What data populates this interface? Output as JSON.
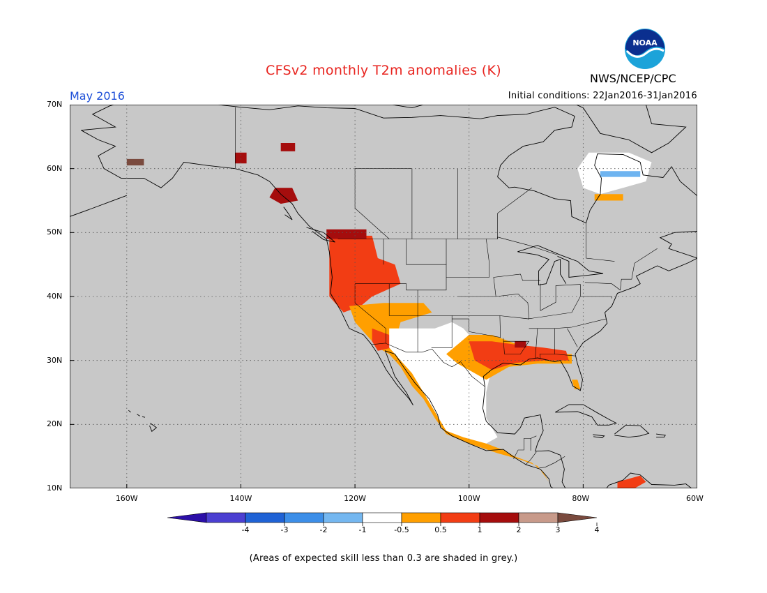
{
  "header": {
    "title": "CFSv2 monthly T2m anomalies (K)",
    "target_month": "May 2016",
    "initial_conditions": "Initial conditions: 22Jan2016-31Jan2016",
    "organization": "NWS/NCEP/CPC",
    "logo_text": "NOAA"
  },
  "map": {
    "lon_range": [
      -170,
      -60
    ],
    "lat_range": [
      10,
      70
    ],
    "land_color": "#c8c8c8",
    "ocean_color": "#c8c8c8",
    "lat_labels": [
      {
        "value": 70,
        "label": "70N"
      },
      {
        "value": 60,
        "label": "60N"
      },
      {
        "value": 50,
        "label": "50N"
      },
      {
        "value": 40,
        "label": "40N"
      },
      {
        "value": 30,
        "label": "30N"
      },
      {
        "value": 20,
        "label": "20N"
      },
      {
        "value": 10,
        "label": "10N"
      }
    ],
    "lon_labels": [
      {
        "value": -160,
        "label": "160W"
      },
      {
        "value": -140,
        "label": "140W"
      },
      {
        "value": -120,
        "label": "120W"
      },
      {
        "value": -100,
        "label": "100W"
      },
      {
        "value": -80,
        "label": "80W"
      },
      {
        "value": -60,
        "label": "60W"
      }
    ],
    "anomaly_regions": [
      {
        "name": "pacific-northwest",
        "color": "#f23d14",
        "points": [
          [
            -124.5,
            49.5
          ],
          [
            -117,
            49.5
          ],
          [
            -116,
            46
          ],
          [
            -113,
            45
          ],
          [
            -112,
            42
          ],
          [
            -117,
            40
          ],
          [
            -119,
            38.5
          ],
          [
            -122,
            37.5
          ],
          [
            -124.5,
            40
          ]
        ]
      },
      {
        "name": "bc-coast-dark",
        "color": "#a50d0d",
        "points": [
          [
            -125,
            50.5
          ],
          [
            -118,
            50.5
          ],
          [
            -118,
            49
          ],
          [
            -125,
            49
          ]
        ]
      },
      {
        "name": "southwest-orange",
        "color": "#ff9f00",
        "points": [
          [
            -121,
            38.5
          ],
          [
            -115,
            39
          ],
          [
            -112,
            39
          ],
          [
            -108,
            39
          ],
          [
            -106.5,
            37.5
          ],
          [
            -112,
            36
          ],
          [
            -113,
            33
          ],
          [
            -111,
            30
          ],
          [
            -108,
            27
          ],
          [
            -106,
            24
          ],
          [
            -104,
            21
          ],
          [
            -101,
            19
          ],
          [
            -97,
            17
          ],
          [
            -94,
            16
          ],
          [
            -92,
            15
          ],
          [
            -89,
            14
          ],
          [
            -87,
            12.5
          ],
          [
            -86,
            11
          ],
          [
            -88,
            13.5
          ],
          [
            -91,
            14.5
          ],
          [
            -95,
            15.5
          ],
          [
            -100,
            17
          ],
          [
            -104,
            18.5
          ],
          [
            -106,
            21
          ],
          [
            -108,
            24
          ],
          [
            -110,
            26
          ],
          [
            -112,
            29
          ],
          [
            -114,
            31
          ],
          [
            -116,
            32
          ],
          [
            -118,
            34
          ],
          [
            -120,
            36
          ]
        ]
      },
      {
        "name": "southwest-red",
        "color": "#f23d14",
        "points": [
          [
            -117,
            35
          ],
          [
            -114,
            34
          ],
          [
            -113.5,
            32
          ],
          [
            -116,
            31.5
          ],
          [
            -117,
            33
          ]
        ]
      },
      {
        "name": "mexico-white",
        "color": "#ffffff",
        "points": [
          [
            -114,
            35
          ],
          [
            -106,
            35
          ],
          [
            -103,
            36
          ],
          [
            -101,
            35
          ],
          [
            -98,
            32
          ],
          [
            -96,
            29
          ],
          [
            -97,
            25
          ],
          [
            -97,
            21
          ],
          [
            -95,
            18
          ],
          [
            -97,
            17
          ],
          [
            -101,
            18
          ],
          [
            -104,
            19
          ],
          [
            -106,
            22
          ],
          [
            -108,
            25
          ],
          [
            -110,
            28
          ],
          [
            -112,
            30
          ],
          [
            -114,
            32
          ]
        ]
      },
      {
        "name": "gulf-coast-orange",
        "color": "#ff9f00",
        "points": [
          [
            -104,
            31
          ],
          [
            -100,
            34
          ],
          [
            -96,
            34
          ],
          [
            -90,
            32
          ],
          [
            -86,
            31
          ],
          [
            -82,
            31
          ],
          [
            -82,
            29.5
          ],
          [
            -88,
            29.5
          ],
          [
            -93,
            29
          ],
          [
            -97,
            27
          ],
          [
            -99,
            28
          ],
          [
            -102,
            29.5
          ]
        ]
      },
      {
        "name": "gulf-coast-red",
        "color": "#f23d14",
        "points": [
          [
            -100,
            33
          ],
          [
            -96,
            33
          ],
          [
            -92,
            32.5
          ],
          [
            -87,
            32
          ],
          [
            -83,
            31.5
          ],
          [
            -82.5,
            30
          ],
          [
            -87,
            30
          ],
          [
            -92,
            29.6
          ],
          [
            -96,
            28.5
          ],
          [
            -99,
            30
          ]
        ]
      },
      {
        "name": "gulf-coast-dark",
        "color": "#a50d0d",
        "points": [
          [
            -92,
            33
          ],
          [
            -90,
            33
          ],
          [
            -90,
            32
          ],
          [
            -92,
            32
          ]
        ]
      },
      {
        "name": "florida-orange",
        "color": "#ff9f00",
        "points": [
          [
            -82,
            27
          ],
          [
            -81,
            27
          ],
          [
            -80.5,
            25.5
          ],
          [
            -81.5,
            25.5
          ]
        ]
      },
      {
        "name": "alaska-panhandle-dark",
        "color": "#a50d0d",
        "points": [
          [
            -134,
            57
          ],
          [
            -131,
            57
          ],
          [
            -130,
            55
          ],
          [
            -133,
            54.5
          ],
          [
            -135,
            55.5
          ]
        ]
      },
      {
        "name": "alaska-yukon-dark",
        "color": "#a50d0d",
        "points": [
          [
            -141,
            62.5
          ],
          [
            -139,
            62.5
          ],
          [
            -139,
            60.8
          ],
          [
            -141,
            60.8
          ]
        ]
      },
      {
        "name": "yukon-dark",
        "color": "#a50d0d",
        "points": [
          [
            -133,
            64
          ],
          [
            -130.5,
            64
          ],
          [
            -130.5,
            62.7
          ],
          [
            -133,
            62.7
          ]
        ]
      },
      {
        "name": "nw-alaska-brown",
        "color": "#7a4a3e",
        "points": [
          [
            -160,
            61.5
          ],
          [
            -157,
            61.5
          ],
          [
            -157,
            60.5
          ],
          [
            -160,
            60.5
          ]
        ]
      },
      {
        "name": "hudson-white",
        "color": "#ffffff",
        "points": [
          [
            -79,
            62.5
          ],
          [
            -72,
            62.5
          ],
          [
            -68,
            61
          ],
          [
            -69,
            58
          ],
          [
            -73,
            57
          ],
          [
            -77,
            56
          ],
          [
            -80,
            57
          ],
          [
            -81,
            60
          ]
        ]
      },
      {
        "name": "hudson-blue",
        "color": "#6eb4f0",
        "points": [
          [
            -77,
            59.6
          ],
          [
            -70,
            59.6
          ],
          [
            -70,
            58.7
          ],
          [
            -77,
            58.7
          ]
        ]
      },
      {
        "name": "hudson-orange",
        "color": "#ff9f00",
        "points": [
          [
            -78,
            56
          ],
          [
            -73,
            56
          ],
          [
            -73,
            55
          ],
          [
            -78,
            55
          ]
        ]
      },
      {
        "name": "venezuela-red",
        "color": "#f23d14",
        "points": [
          [
            -74,
            11
          ],
          [
            -70,
            12
          ],
          [
            -69,
            11
          ],
          [
            -71,
            10
          ],
          [
            -74,
            10
          ]
        ]
      }
    ]
  },
  "colorbar": {
    "colors": [
      "#2c0fa8",
      "#4b3fd1",
      "#1f62d5",
      "#3c8ee8",
      "#74b7f0",
      "#ffffff",
      "#ff9f00",
      "#f23d14",
      "#a50d0d",
      "#c89a8a",
      "#7a4a3e"
    ],
    "ticks": [
      "-4",
      "-3",
      "-2",
      "-1",
      "-0.5",
      "0.5",
      "1",
      "2",
      "3",
      "4"
    ]
  },
  "footnote": "(Areas of expected skill less than 0.3 are shaded in grey.)"
}
